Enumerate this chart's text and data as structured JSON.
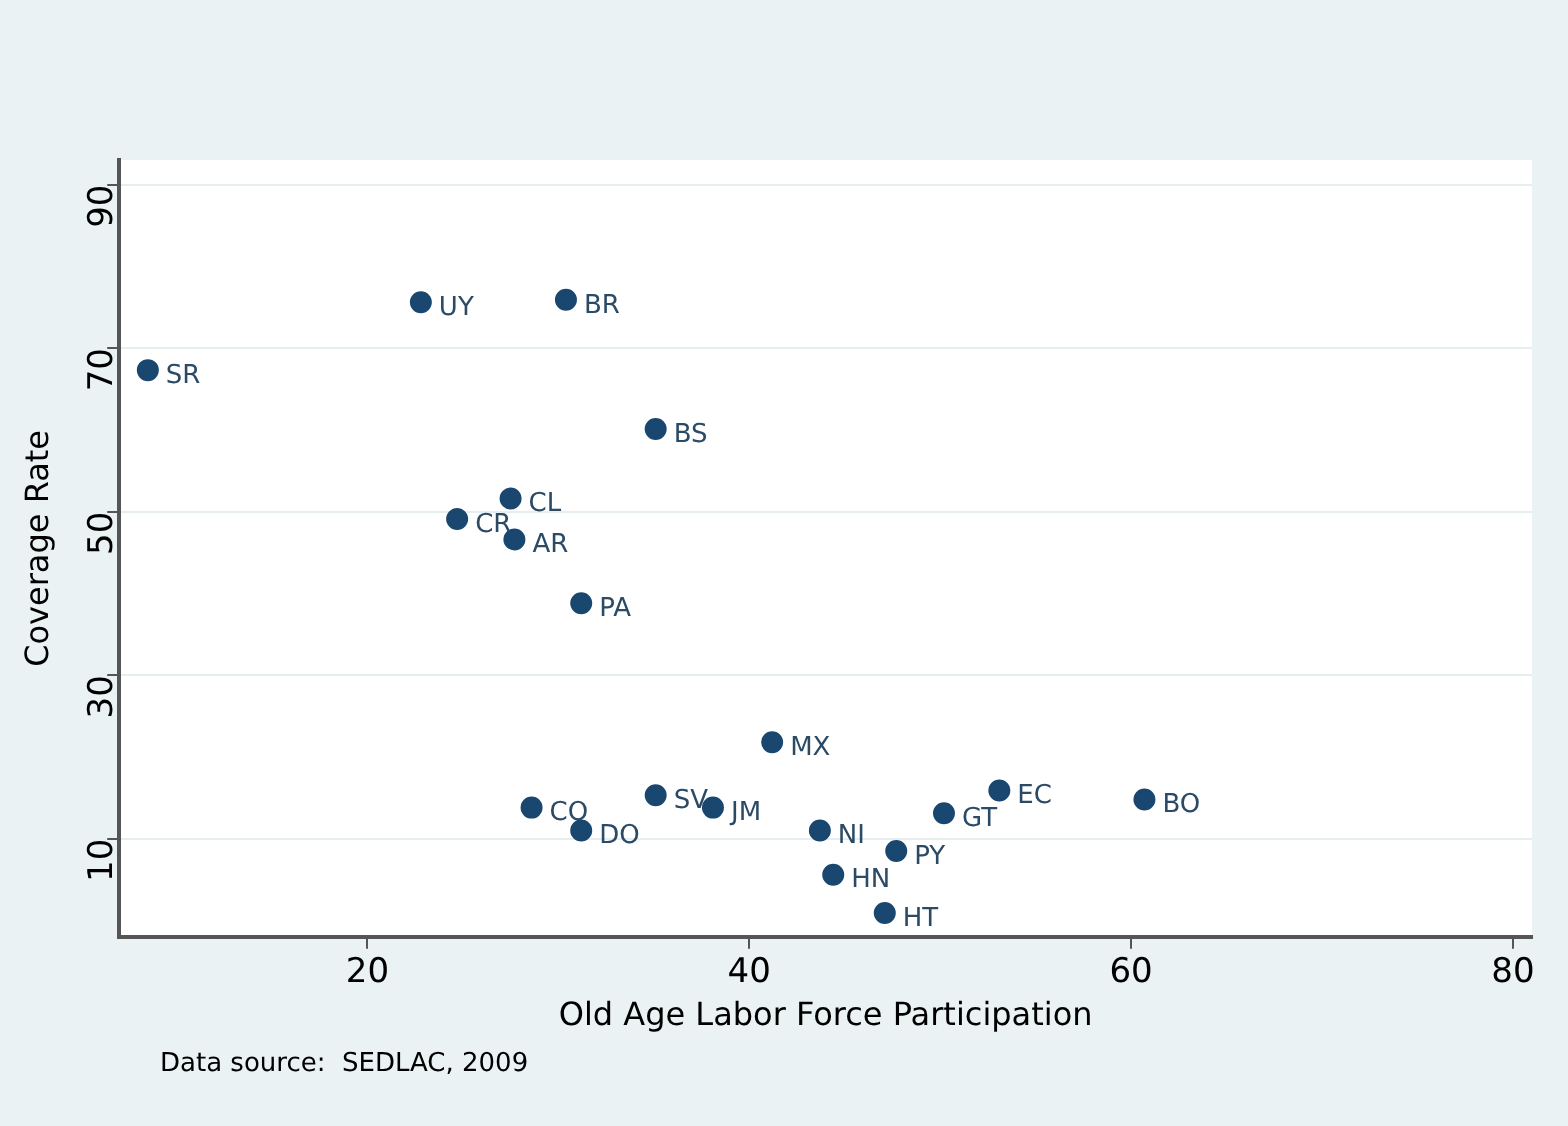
{
  "chart_data": {
    "type": "scatter",
    "xlabel": "Old Age Labor Force Participation",
    "ylabel": "Coverage Rate",
    "x": [
      8.5,
      22.8,
      30.4,
      35.1,
      27.5,
      24.7,
      27.7,
      31.2,
      28.6,
      31.2,
      35.1,
      38.1,
      41.2,
      43.7,
      44.4,
      47.1,
      47.7,
      50.2,
      53.1,
      60.7
    ],
    "values": [
      67.3,
      75.6,
      75.9,
      60.1,
      51.6,
      49.1,
      46.6,
      38.8,
      13.8,
      11.0,
      15.3,
      13.8,
      21.8,
      11.0,
      5.6,
      0.9,
      8.5,
      13.1,
      15.9,
      14.8
    ],
    "color": "#1a476f",
    "marker": "circle",
    "grid": "y",
    "legend": false,
    "xlim": [
      7,
      81
    ],
    "xticks": [
      20,
      40,
      60,
      80
    ],
    "ylim": [
      -2,
      93
    ],
    "yticks": [
      10,
      30,
      50,
      70,
      90
    ],
    "annotations": [
      {
        "text": "SR",
        "x": 8.5,
        "y": 67.3
      },
      {
        "text": "UY",
        "x": 22.8,
        "y": 75.6
      },
      {
        "text": "BR",
        "x": 30.4,
        "y": 75.9
      },
      {
        "text": "BS",
        "x": 35.1,
        "y": 60.1
      },
      {
        "text": "CL",
        "x": 27.5,
        "y": 51.6
      },
      {
        "text": "CR",
        "x": 24.7,
        "y": 49.1
      },
      {
        "text": "AR",
        "x": 27.7,
        "y": 46.6
      },
      {
        "text": "PA",
        "x": 31.2,
        "y": 38.8
      },
      {
        "text": "CO",
        "x": 28.6,
        "y": 13.8
      },
      {
        "text": "DO",
        "x": 31.2,
        "y": 11.0
      },
      {
        "text": "SV",
        "x": 35.1,
        "y": 15.3
      },
      {
        "text": "JM",
        "x": 38.1,
        "y": 13.8
      },
      {
        "text": "MX",
        "x": 41.2,
        "y": 21.8
      },
      {
        "text": "NI",
        "x": 43.7,
        "y": 11.0
      },
      {
        "text": "HN",
        "x": 44.4,
        "y": 5.6
      },
      {
        "text": "HT",
        "x": 47.1,
        "y": 0.9
      },
      {
        "text": "PY",
        "x": 47.7,
        "y": 8.5
      },
      {
        "text": "GT",
        "x": 50.2,
        "y": 13.1
      },
      {
        "text": "EC",
        "x": 53.1,
        "y": 15.9
      },
      {
        "text": "BO",
        "x": 60.7,
        "y": 14.8
      },
      "Data source:  SEDLAC, 2009"
    ]
  }
}
